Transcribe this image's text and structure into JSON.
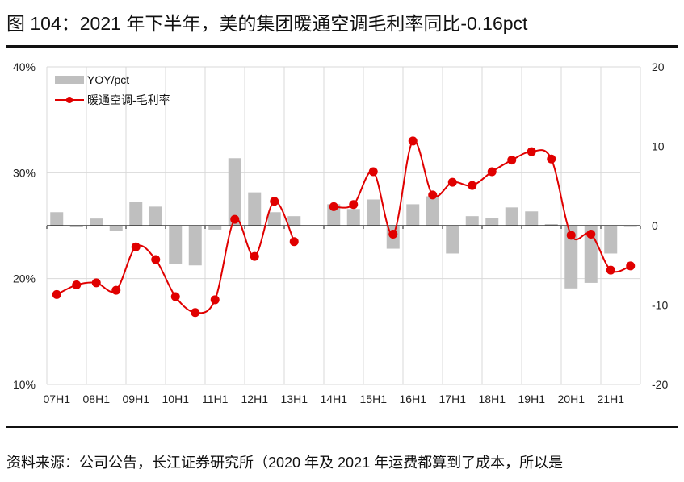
{
  "title": "图 104：2021 年下半年，美的集团暖通空调毛利率同比-0.16pct",
  "footer": "资料来源：公司公告，长江证券研究所（2020 年及 2021 年运费都算到了成本，所以是",
  "chart_data": {
    "type": "bar+line",
    "categories": [
      "07H1",
      "07H2",
      "08H1",
      "08H2",
      "09H1",
      "09H2",
      "10H1",
      "10H2",
      "11H1",
      "11H2",
      "12H1",
      "12H2",
      "13H1",
      "13H2",
      "14H1",
      "14H2",
      "15H1",
      "15H2",
      "16H1",
      "16H2",
      "17H1",
      "17H2",
      "18H1",
      "18H2",
      "19H1",
      "19H2",
      "20H1",
      "20H2",
      "21H1",
      "21H2"
    ],
    "tick_labels": [
      "07H1",
      "08H1",
      "09H1",
      "10H1",
      "11H1",
      "12H1",
      "13H1",
      "14H1",
      "15H1",
      "16H1",
      "17H1",
      "18H1",
      "19H1",
      "20H1",
      "21H1"
    ],
    "series": [
      {
        "name": "YOY/pct",
        "type": "bar",
        "axis": "right",
        "color": "#bfbfbf",
        "values": [
          1.7,
          -0.2,
          0.9,
          -0.7,
          3.0,
          2.4,
          -4.8,
          -5.0,
          -0.5,
          8.5,
          4.2,
          1.7,
          1.2,
          null,
          2.7,
          2.1,
          3.3,
          -2.9,
          2.7,
          3.7,
          -3.5,
          1.2,
          1.0,
          2.3,
          1.8,
          0.2,
          -7.9,
          -7.2,
          -3.5,
          -0.16
        ]
      },
      {
        "name": "暖通空调-毛利率",
        "type": "line",
        "axis": "left",
        "color": "#e00000",
        "values": [
          18.5,
          19.4,
          19.6,
          18.9,
          23.0,
          21.8,
          18.3,
          16.8,
          18.0,
          25.6,
          22.1,
          27.3,
          23.5,
          null,
          26.8,
          27.0,
          30.1,
          24.2,
          33.0,
          27.9,
          29.1,
          28.8,
          30.1,
          31.2,
          32.0,
          31.3,
          24.1,
          24.2,
          20.8,
          21.2
        ]
      }
    ],
    "left_axis": {
      "range": [
        10,
        40
      ],
      "ticks": [
        "10%",
        "20%",
        "30%",
        "40%"
      ]
    },
    "right_axis": {
      "range": [
        -20,
        20
      ],
      "ticks": [
        "-20",
        "-10",
        "0",
        "10",
        "20"
      ]
    },
    "grid": true,
    "legend": "top-left"
  }
}
